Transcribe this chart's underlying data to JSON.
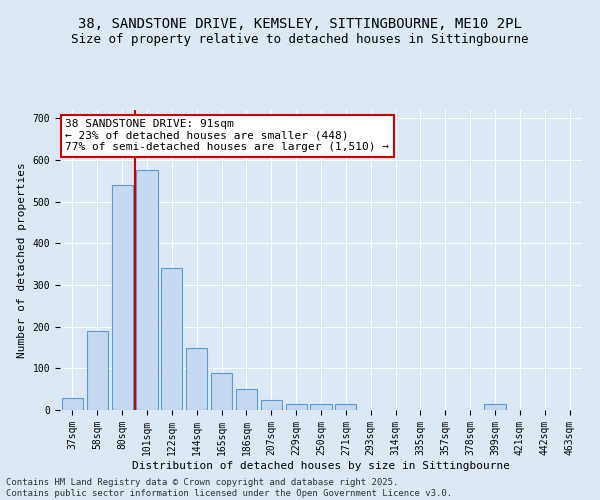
{
  "title_line1": "38, SANDSTONE DRIVE, KEMSLEY, SITTINGBOURNE, ME10 2PL",
  "title_line2": "Size of property relative to detached houses in Sittingbourne",
  "xlabel": "Distribution of detached houses by size in Sittingbourne",
  "ylabel": "Number of detached properties",
  "categories": [
    "37sqm",
    "58sqm",
    "80sqm",
    "101sqm",
    "122sqm",
    "144sqm",
    "165sqm",
    "186sqm",
    "207sqm",
    "229sqm",
    "250sqm",
    "271sqm",
    "293sqm",
    "314sqm",
    "335sqm",
    "357sqm",
    "378sqm",
    "399sqm",
    "421sqm",
    "442sqm",
    "463sqm"
  ],
  "values": [
    30,
    190,
    540,
    575,
    340,
    150,
    90,
    50,
    25,
    15,
    15,
    15,
    0,
    0,
    0,
    0,
    0,
    15,
    0,
    0,
    0
  ],
  "bar_color": "#c5d8f0",
  "bar_edge_color": "#5b9bd5",
  "vline_color": "#cc0000",
  "vline_pos": 2.5,
  "annotation_text": "38 SANDSTONE DRIVE: 91sqm\n← 23% of detached houses are smaller (448)\n77% of semi-detached houses are larger (1,510) →",
  "annotation_box_color": "#ffffff",
  "annotation_box_edge_color": "#cc0000",
  "ylim": [
    0,
    720
  ],
  "yticks": [
    0,
    100,
    200,
    300,
    400,
    500,
    600,
    700
  ],
  "background_color": "#dce9f5",
  "plot_bg_color": "#dce9f5",
  "footer_line1": "Contains HM Land Registry data © Crown copyright and database right 2025.",
  "footer_line2": "Contains public sector information licensed under the Open Government Licence v3.0.",
  "title_fontsize": 10,
  "subtitle_fontsize": 9,
  "axis_label_fontsize": 8,
  "tick_fontsize": 7,
  "annotation_fontsize": 8,
  "footer_fontsize": 6.5
}
